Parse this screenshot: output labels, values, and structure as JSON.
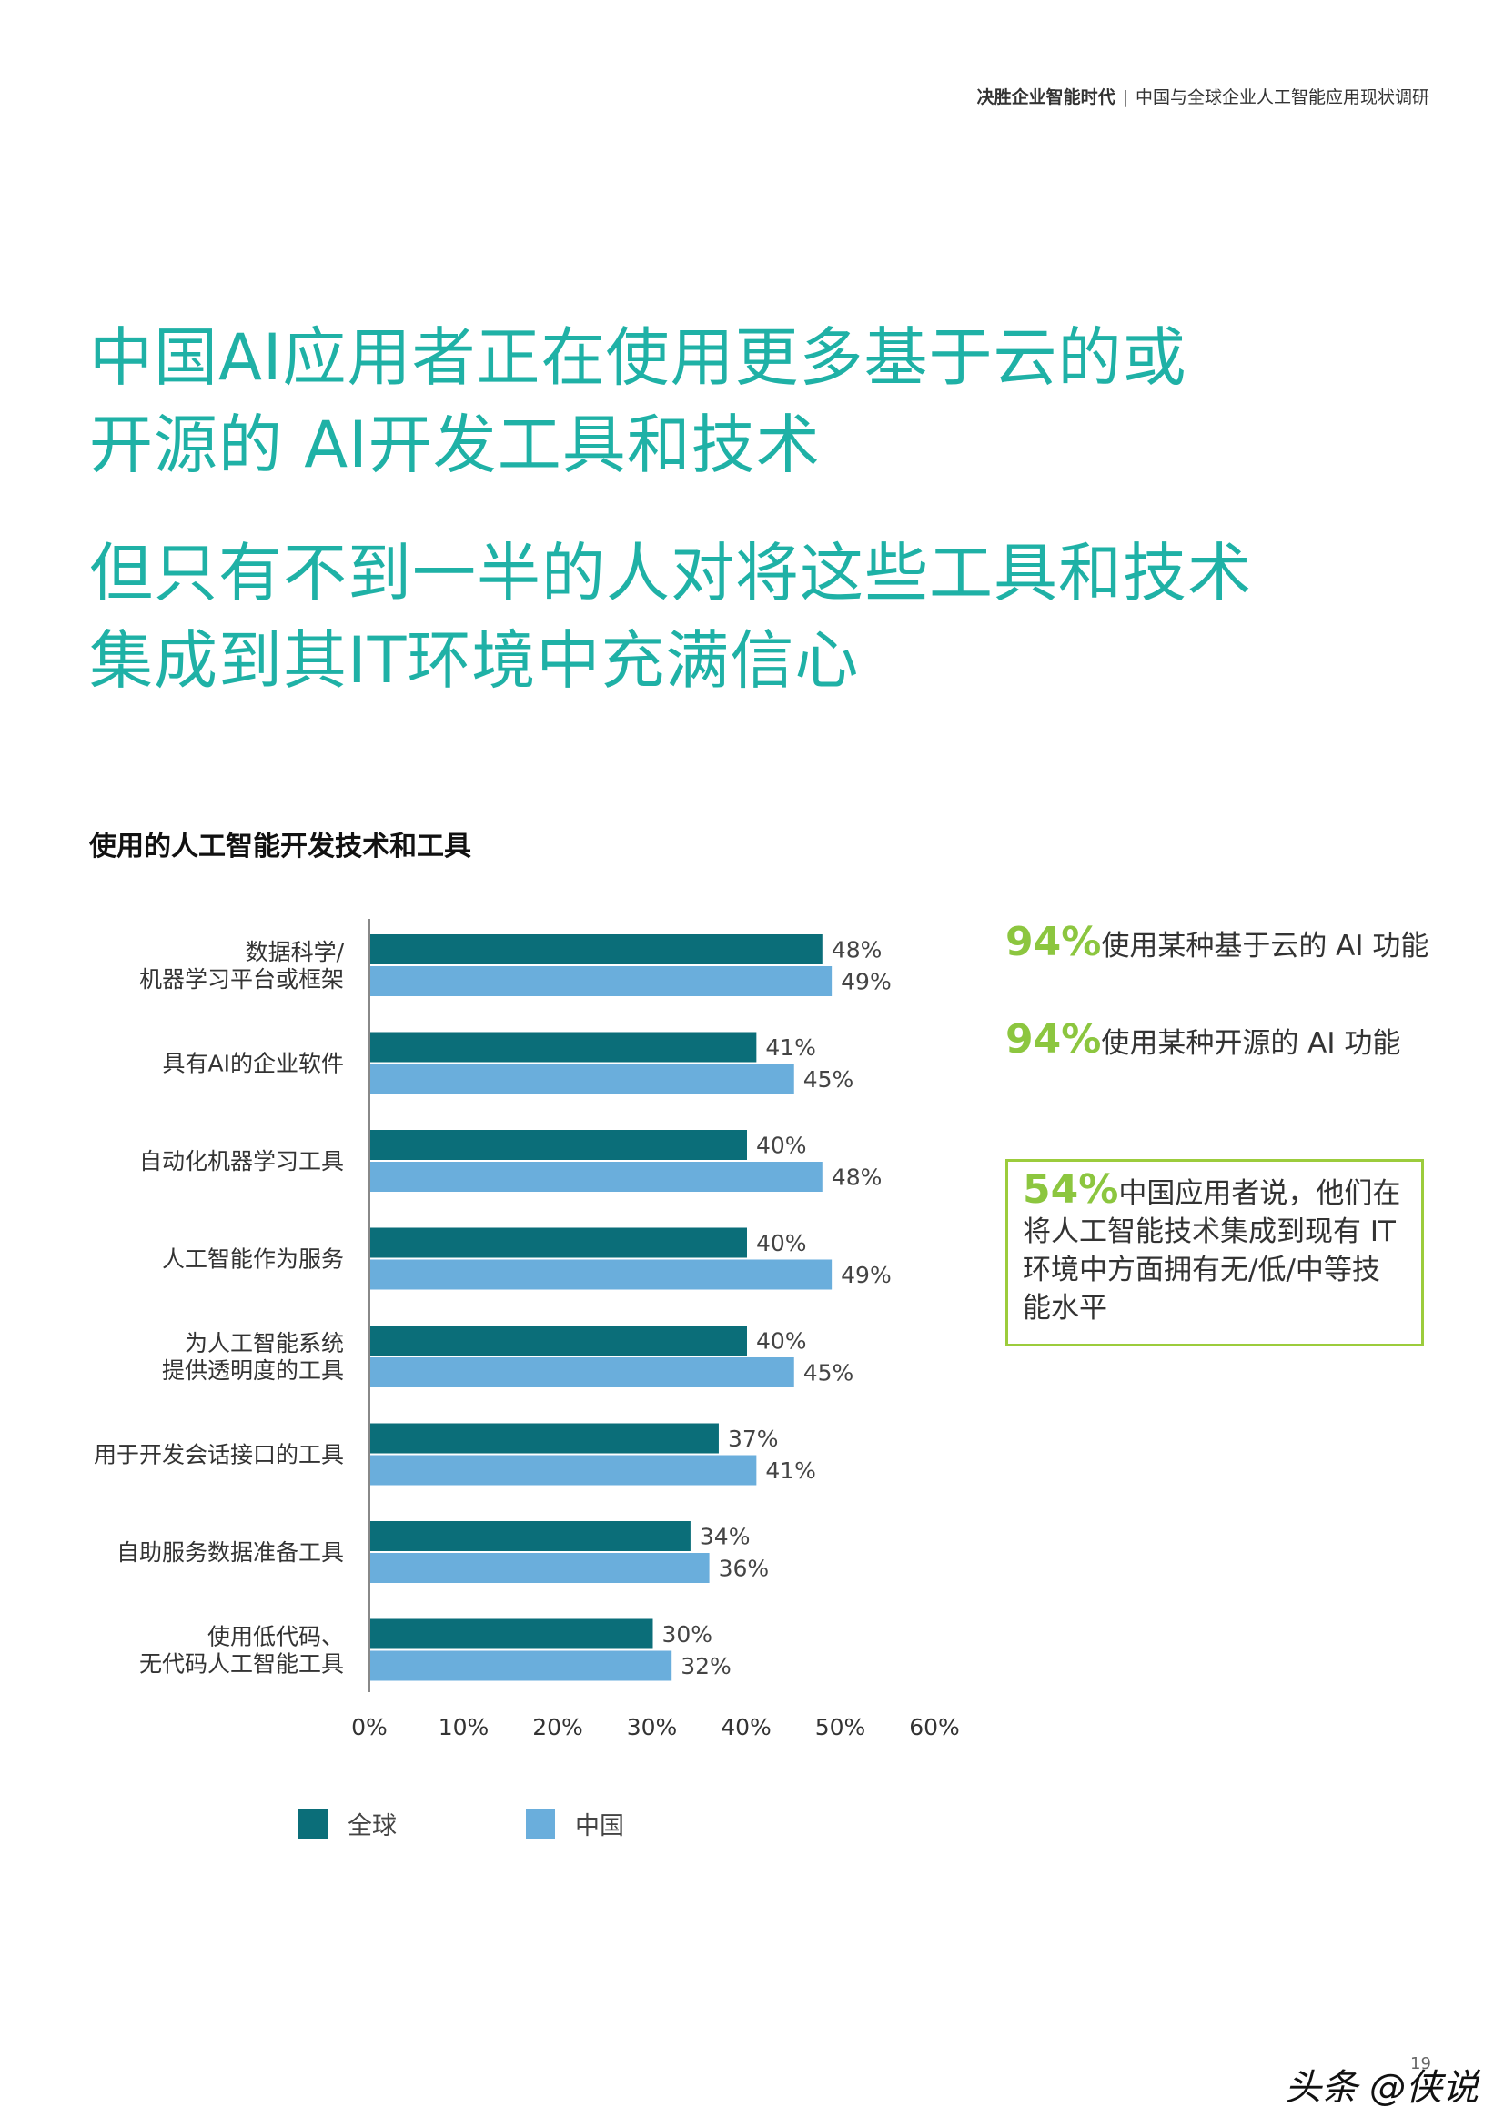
{
  "header": {
    "left": "决胜企业智能时代",
    "separator": "|",
    "right": "中国与全球企业人工智能应用现状调研"
  },
  "headline": {
    "line1": "中国AI应用者正在使用更多基于云的或",
    "line2": "开源的 AI开发工具和技术",
    "line3": "但只有不到一半的人对将这些工具和技术",
    "line4": "集成到其IT环境中充满信心"
  },
  "colors": {
    "headline": "#1fb1a6",
    "global": "#0b6e79",
    "china": "#6aaedc",
    "accent_green": "#8cc63f"
  },
  "chart_data": {
    "type": "bar",
    "orientation": "horizontal",
    "title": "使用的人工智能开发技术和工具",
    "categories": [
      [
        "数据科学/",
        "机器学习平台或框架"
      ],
      [
        "具有AI的企业软件"
      ],
      [
        "自动化机器学习工具"
      ],
      [
        "人工智能作为服务"
      ],
      [
        "为人工智能系统",
        "提供透明度的工具"
      ],
      [
        "用于开发会话接口的工具"
      ],
      [
        "自助服务数据准备工具"
      ],
      [
        "使用低代码、",
        "无代码人工智能工具"
      ]
    ],
    "series": [
      {
        "name": "全球",
        "values": [
          48,
          41,
          40,
          40,
          40,
          37,
          34,
          30
        ],
        "color": "#0b6e79"
      },
      {
        "name": "中国",
        "values": [
          49,
          45,
          48,
          49,
          45,
          41,
          36,
          32
        ],
        "color": "#6aaedc"
      }
    ],
    "value_labels": [
      [
        "48%",
        "41%",
        "40%",
        "40%",
        "40%",
        "37%",
        "34%",
        "30%"
      ],
      [
        "49%",
        "45%",
        "48%",
        "49%",
        "45%",
        "41%",
        "36%",
        "32%"
      ]
    ],
    "xlim": [
      0,
      60
    ],
    "xticks": [
      "0%",
      "10%",
      "20%",
      "30%",
      "40%",
      "50%",
      "60%"
    ],
    "grid": false,
    "legend": "bottom"
  },
  "stats": [
    {
      "pct": "94%",
      "text": "使用某种基于云的 AI 功能"
    },
    {
      "pct": "94%",
      "text": "使用某种开源的 AI 功能"
    }
  ],
  "stat_box": {
    "pct": "54%",
    "lines": [
      "中国应用者说，他们在",
      "将人工智能技术集成到现有 IT",
      "环境中方面拥有无/低/中等技",
      "能水平"
    ]
  },
  "page_number": "19",
  "watermark": "头条 @侠说"
}
